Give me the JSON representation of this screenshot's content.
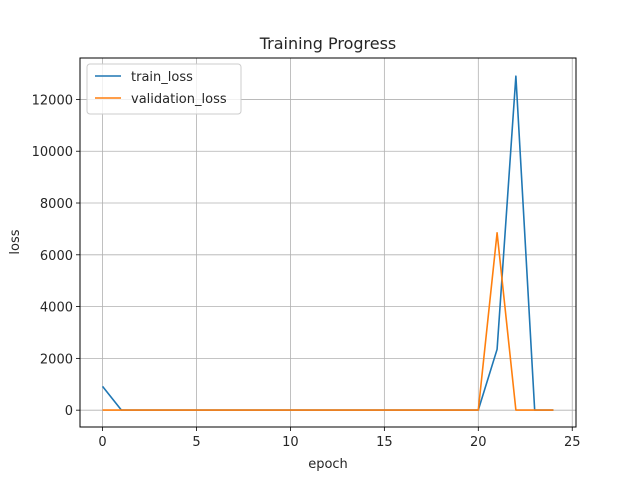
{
  "chart_data": {
    "type": "line",
    "title": "Training Progress",
    "xlabel": "epoch",
    "ylabel": "loss",
    "xlim": [
      -1.2,
      25.2
    ],
    "ylim": [
      -650,
      13600
    ],
    "xticks": [
      0,
      5,
      10,
      15,
      20,
      25
    ],
    "yticks": [
      0,
      2000,
      4000,
      6000,
      8000,
      10000,
      12000
    ],
    "grid": true,
    "legend_position": "top-left",
    "x": [
      0,
      1,
      2,
      3,
      4,
      5,
      6,
      7,
      8,
      9,
      10,
      11,
      12,
      13,
      14,
      15,
      16,
      17,
      18,
      19,
      20,
      21,
      22,
      23,
      24
    ],
    "series": [
      {
        "name": "train_loss",
        "color": "#1f77b4",
        "values": [
          920,
          5,
          5,
          5,
          5,
          5,
          5,
          5,
          5,
          5,
          5,
          5,
          5,
          5,
          5,
          5,
          5,
          5,
          5,
          5,
          5,
          2350,
          12900,
          5,
          5
        ]
      },
      {
        "name": "validation_loss",
        "color": "#ff7f0e",
        "values": [
          5,
          5,
          5,
          5,
          5,
          5,
          5,
          5,
          5,
          5,
          5,
          5,
          5,
          5,
          5,
          5,
          5,
          5,
          5,
          5,
          5,
          6850,
          5,
          5,
          5
        ]
      }
    ]
  }
}
